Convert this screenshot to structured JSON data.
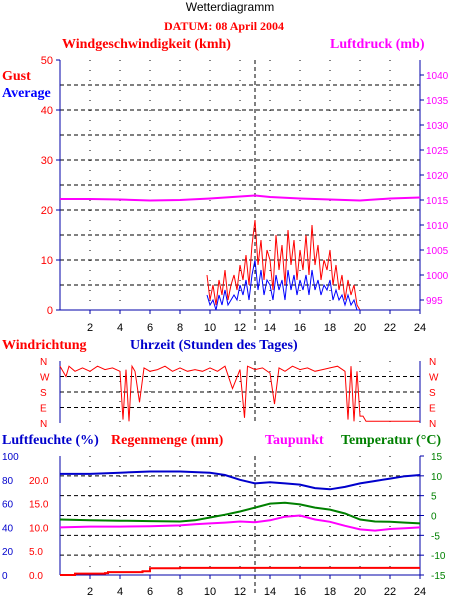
{
  "title": "Wetterdiagramm",
  "date_label": "DATUM: 08 April 2004",
  "colors": {
    "gust": "#ff0000",
    "average": "#0000ff",
    "pressure": "#ff00ff",
    "humidity": "#0000cc",
    "rain": "#ff0000",
    "dewpoint": "#ff00ff",
    "temperature": "#008000",
    "grid": "#000000",
    "axis": "#0000aa"
  },
  "chart_data": [
    {
      "type": "line",
      "panel": "wind_pressure",
      "title": "Windgeschwindigkeit (kmh)",
      "right_title": "Luftdruck (mb)",
      "legend": [
        "Gust",
        "Average"
      ],
      "xlabel": "Uhrzeit (Stunden des Tages)",
      "xlim": [
        0,
        24
      ],
      "x_ticks": [
        "2",
        "4",
        "6",
        "8",
        "10",
        "12",
        "14",
        "16",
        "18",
        "20",
        "22",
        "24"
      ],
      "ylim": [
        0,
        50
      ],
      "y_ticks": [
        "0",
        "10",
        "20",
        "30",
        "40",
        "50"
      ],
      "y2lim": [
        993,
        1043
      ],
      "y2_ticks": [
        "995",
        "1000",
        "1005",
        "1010",
        "1015",
        "1020",
        "1025",
        "1030",
        "1035",
        "1040"
      ],
      "marker_hour": 13,
      "series": [
        {
          "name": "Gust",
          "axis": "left",
          "x": [
            9.8,
            10.0,
            10.2,
            10.4,
            10.6,
            10.8,
            11.0,
            11.2,
            11.4,
            11.6,
            11.8,
            12.0,
            12.2,
            12.4,
            12.6,
            12.8,
            13.0,
            13.2,
            13.4,
            13.6,
            13.8,
            14.0,
            14.2,
            14.4,
            14.6,
            14.8,
            15.0,
            15.2,
            15.4,
            15.6,
            15.8,
            16.0,
            16.2,
            16.4,
            16.6,
            16.8,
            17.0,
            17.2,
            17.4,
            17.6,
            17.8,
            18.0,
            18.2,
            18.4,
            18.6,
            18.8,
            19.0,
            19.2,
            19.4,
            19.6,
            19.8,
            20.0
          ],
          "values": [
            7,
            2,
            5,
            1,
            6,
            3,
            8,
            2,
            5,
            7,
            4,
            9,
            6,
            11,
            5,
            13,
            18,
            9,
            14,
            6,
            12,
            10,
            4,
            15,
            8,
            13,
            5,
            16,
            9,
            14,
            6,
            12,
            8,
            15,
            7,
            17,
            9,
            13,
            6,
            10,
            8,
            12,
            5,
            9,
            4,
            7,
            2,
            6,
            3,
            5,
            1,
            0
          ]
        },
        {
          "name": "Average",
          "axis": "left",
          "x": [
            9.8,
            10.0,
            10.2,
            10.4,
            10.6,
            10.8,
            11.0,
            11.2,
            11.4,
            11.6,
            11.8,
            12.0,
            12.2,
            12.4,
            12.6,
            12.8,
            13.0,
            13.2,
            13.4,
            13.6,
            13.8,
            14.0,
            14.2,
            14.4,
            14.6,
            14.8,
            15.0,
            15.2,
            15.4,
            15.6,
            15.8,
            16.0,
            16.2,
            16.4,
            16.6,
            16.8,
            17.0,
            17.2,
            17.4,
            17.6,
            17.8,
            18.0,
            18.2,
            18.4,
            18.6,
            18.8,
            19.0,
            19.2,
            19.4,
            19.6,
            19.8,
            20.0
          ],
          "values": [
            3,
            1,
            2,
            0,
            3,
            1,
            4,
            1,
            2,
            3,
            2,
            5,
            3,
            6,
            2,
            7,
            10,
            4,
            8,
            3,
            6,
            5,
            2,
            7,
            4,
            6,
            2,
            8,
            4,
            7,
            3,
            6,
            4,
            7,
            3,
            8,
            4,
            6,
            3,
            5,
            4,
            6,
            2,
            4,
            2,
            3,
            1,
            3,
            1,
            2,
            0,
            0
          ]
        },
        {
          "name": "Luftdruck",
          "axis": "right",
          "x": [
            0,
            2,
            4,
            6,
            8,
            10,
            12,
            13,
            14,
            16,
            18,
            20,
            22,
            24
          ],
          "values": [
            1015.2,
            1015.2,
            1015.1,
            1014.9,
            1015.0,
            1015.3,
            1015.7,
            1015.9,
            1015.6,
            1015.3,
            1015.1,
            1014.9,
            1015.3,
            1015.5
          ]
        }
      ]
    },
    {
      "type": "line",
      "panel": "wind_direction",
      "title": "Windrichtung",
      "xlim": [
        0,
        24
      ],
      "y_ticks": [
        "N",
        "W",
        "S",
        "E",
        "N"
      ],
      "marker_hour": 13,
      "series": [
        {
          "name": "Windrichtung",
          "x": [
            0,
            0.4,
            0.6,
            1.0,
            1.5,
            2.0,
            2.5,
            3.0,
            3.5,
            4.0,
            4.2,
            4.4,
            4.6,
            4.8,
            5.0,
            5.3,
            5.6,
            6.0,
            6.5,
            7.0,
            7.5,
            8.0,
            8.5,
            9.0,
            9.5,
            10.0,
            10.5,
            11.0,
            11.5,
            12.0,
            12.3,
            12.5,
            13.0,
            13.5,
            14.0,
            14.3,
            14.6,
            15.0,
            15.5,
            16.0,
            16.5,
            17.0,
            17.5,
            18.0,
            18.5,
            19.0,
            19.2,
            19.4,
            19.6,
            19.8,
            20.0,
            20.2,
            20.4,
            24.0
          ],
          "values": [
            330,
            270,
            330,
            300,
            320,
            300,
            330,
            310,
            320,
            300,
            20,
            310,
            10,
            330,
            300,
            120,
            320,
            300,
            310,
            330,
            300,
            320,
            300,
            310,
            300,
            320,
            300,
            330,
            200,
            310,
            30,
            330,
            310,
            320,
            290,
            110,
            320,
            300,
            330,
            310,
            320,
            300,
            310,
            320,
            330,
            300,
            20,
            330,
            10,
            300,
            40,
            40,
            10,
            10
          ]
        }
      ]
    },
    {
      "type": "line",
      "panel": "humidity_rain_temp",
      "legend": [
        "Luftfeuchte (%)",
        "Regenmenge (mm)",
        "Taupunkt",
        "Temperatur (°C)"
      ],
      "xlim": [
        0,
        24
      ],
      "x_ticks": [
        "2",
        "4",
        "6",
        "8",
        "10",
        "12",
        "14",
        "16",
        "18",
        "20",
        "22",
        "24"
      ],
      "ylim_humidity": [
        0,
        100
      ],
      "y_ticks_humidity": [
        "0",
        "20",
        "40",
        "60",
        "80",
        "100"
      ],
      "ylim_rain": [
        0,
        25
      ],
      "y_ticks_rain": [
        "0.0",
        "5.0",
        "10.0",
        "15.0",
        "20.0"
      ],
      "ylim_temp": [
        -15,
        15
      ],
      "y_ticks_temp": [
        "-15",
        "-10",
        "-5",
        "0",
        "5",
        "10",
        "15"
      ],
      "marker_hour": 13,
      "series": [
        {
          "name": "Luftfeuchte (%)",
          "axis": "humidity",
          "x": [
            0,
            2,
            4,
            6,
            8,
            10,
            11,
            12,
            13,
            14,
            15,
            16,
            17,
            18,
            19,
            20,
            21,
            22,
            23,
            24
          ],
          "values": [
            85,
            85,
            86,
            87,
            87,
            86,
            84,
            80,
            77,
            78,
            77,
            76,
            73,
            72,
            74,
            77,
            79,
            81,
            83,
            84
          ]
        },
        {
          "name": "Regenmenge (mm)",
          "axis": "rain",
          "x": [
            0,
            0.7,
            1.0,
            3.0,
            3.2,
            5.5,
            6.0,
            8.0,
            12.0,
            16.0,
            20.0,
            24.0
          ],
          "values": [
            0,
            0,
            0.3,
            0.4,
            0.6,
            0.8,
            1.4,
            1.5,
            1.5,
            1.5,
            1.5,
            1.5
          ]
        },
        {
          "name": "Taupunkt",
          "axis": "temp",
          "x": [
            0,
            2,
            4,
            6,
            8,
            9,
            10,
            11,
            12,
            13,
            14,
            15,
            16,
            17,
            18,
            19,
            20,
            21,
            22,
            23,
            24
          ],
          "values": [
            -3.0,
            -2.8,
            -2.8,
            -2.7,
            -2.5,
            -2.2,
            -2.0,
            -1.8,
            -1.5,
            -1.7,
            -1.2,
            -0.3,
            0,
            -1.0,
            -1.6,
            -2.6,
            -3.5,
            -3.8,
            -3.4,
            -3.2,
            -3.0
          ]
        },
        {
          "name": "Temperatur (°C)",
          "axis": "temp",
          "x": [
            0,
            2,
            4,
            6,
            8,
            9,
            10,
            11,
            12,
            13,
            14,
            15,
            16,
            17,
            18,
            19,
            20,
            21,
            22,
            23,
            24
          ],
          "values": [
            -1.0,
            -1.2,
            -1.3,
            -1.4,
            -1.5,
            -1.2,
            -0.5,
            0.2,
            1.0,
            2.0,
            3.0,
            3.2,
            2.8,
            2.0,
            1.5,
            0.5,
            -1.0,
            -1.5,
            -1.6,
            -1.8,
            -2.0
          ]
        }
      ]
    }
  ]
}
